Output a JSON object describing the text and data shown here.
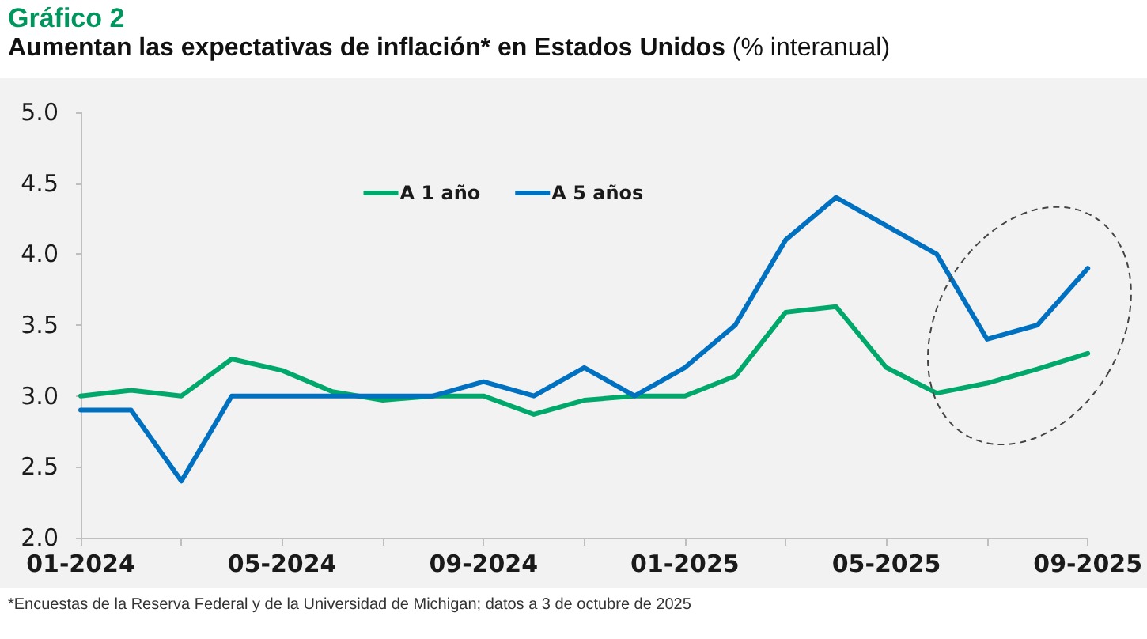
{
  "chart_data": {
    "type": "line",
    "title": "Gráfico 2",
    "subtitle": "Aumentan las expectativas de inflación* en Estados Unidos (% interanual)",
    "categories": [
      "01-2024",
      null,
      null,
      null,
      "05-2024",
      null,
      null,
      null,
      "09-2024",
      null,
      null,
      null,
      "01-2025",
      null,
      null,
      null,
      "05-2025",
      null,
      null,
      null,
      "09-2025"
    ],
    "series": [
      {
        "name": "A 1 año",
        "color": "#00a86b",
        "values": [
          3.0,
          3.04,
          3.0,
          3.26,
          3.18,
          3.03,
          2.97,
          3.0,
          3.0,
          2.87,
          2.97,
          3.0,
          3.0,
          3.14,
          3.59,
          3.63,
          3.2,
          3.02,
          3.09,
          3.19,
          3.3
        ]
      },
      {
        "name": "A 5 años",
        "color": "#0070c0",
        "values": [
          2.9,
          2.9,
          2.4,
          3.0,
          3.0,
          3.0,
          3.0,
          3.0,
          3.1,
          3.0,
          3.2,
          3.0,
          3.2,
          3.5,
          4.1,
          4.4,
          4.2,
          4.0,
          3.4,
          3.5,
          3.9
        ]
      }
    ],
    "ylim": [
      2,
      5
    ],
    "yticks": [
      {
        "value": 2,
        "label": "2.0"
      },
      {
        "value": 2.5,
        "label": "2.5"
      },
      {
        "value": 3,
        "label": "3.0"
      },
      {
        "value": 3.5,
        "label": "3.5"
      },
      {
        "value": 4,
        "label": "4.0"
      },
      {
        "value": 4.5,
        "label": "4.5"
      },
      {
        "value": 5,
        "label": "5.0"
      }
    ],
    "legend": "top",
    "grid": false,
    "marker": "none",
    "line_style": "solid",
    "annotations": [
      "*Encuestas de la Reserva Federal y de la Universidad de Michigan; datos a 3 de octubre de 2025"
    ]
  }
}
